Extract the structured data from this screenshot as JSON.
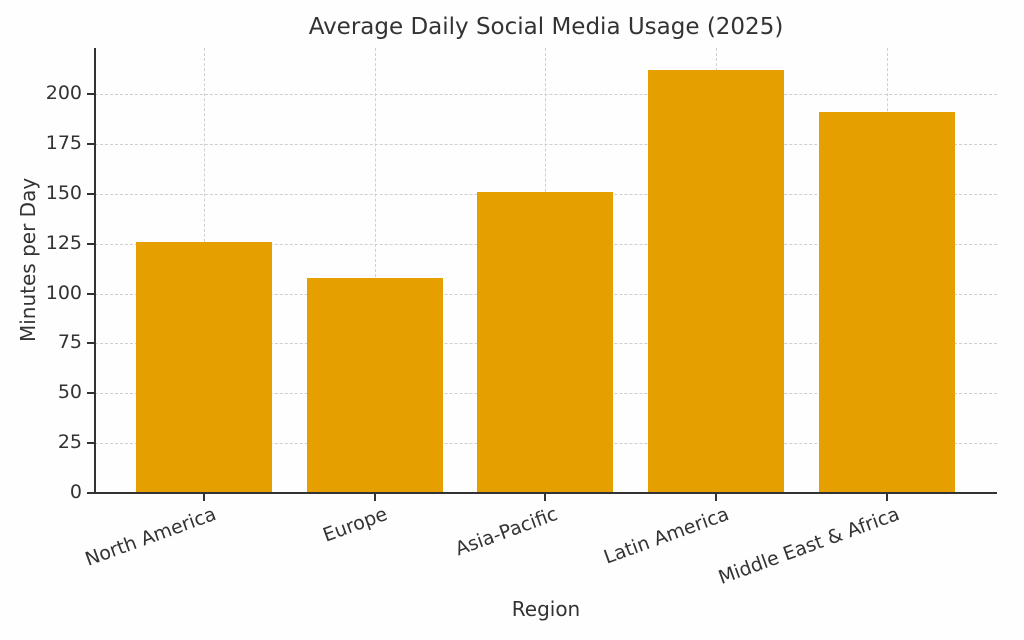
{
  "chart_data": {
    "type": "bar",
    "title": "Average Daily Social Media Usage (2025)",
    "xlabel": "Region",
    "ylabel": "Minutes per Day",
    "categories": [
      "North America",
      "Europe",
      "Asia-Pacific",
      "Latin America",
      "Middle East & Africa"
    ],
    "values": [
      126,
      108,
      151,
      212,
      191
    ],
    "ylim": [
      0,
      222
    ],
    "yticks": [
      0,
      25,
      50,
      75,
      100,
      125,
      150,
      175,
      200
    ],
    "grid": true,
    "bar_color": "#e5a000",
    "legend": null
  }
}
